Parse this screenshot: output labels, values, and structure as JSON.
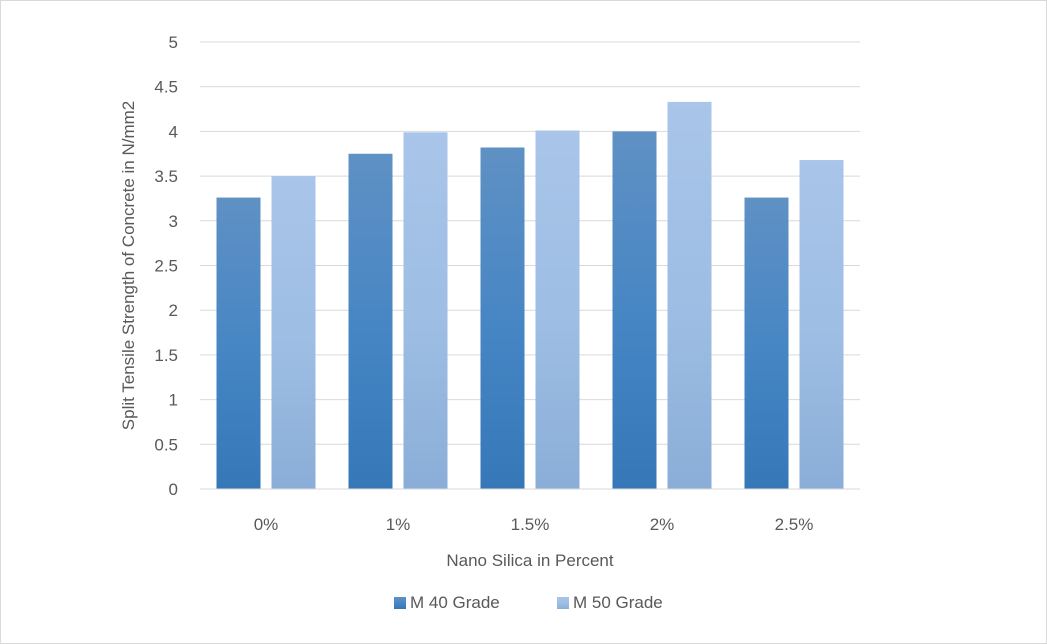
{
  "chart_data": {
    "type": "bar",
    "title": "",
    "xlabel": "Nano Silica in Percent",
    "ylabel": "Split Tensile Strength of Concrete in N/mm2",
    "categories": [
      "0%",
      "1%",
      "1.5%",
      "2%",
      "2.5%"
    ],
    "series": [
      {
        "name": "M 40 Grade",
        "values": [
          3.26,
          3.75,
          3.82,
          4.0,
          3.26
        ],
        "color": "#3f7fbf"
      },
      {
        "name": "M 50 Grade",
        "values": [
          3.5,
          3.99,
          4.01,
          4.33,
          3.68
        ],
        "color": "#9dbde3"
      }
    ],
    "ylim": [
      0,
      5
    ],
    "yticks": [
      "0",
      "0.5",
      "1",
      "1.5",
      "2",
      "2.5",
      "3",
      "3.5",
      "4",
      "4.5",
      "5"
    ],
    "grid": true,
    "legend_position": "bottom"
  }
}
